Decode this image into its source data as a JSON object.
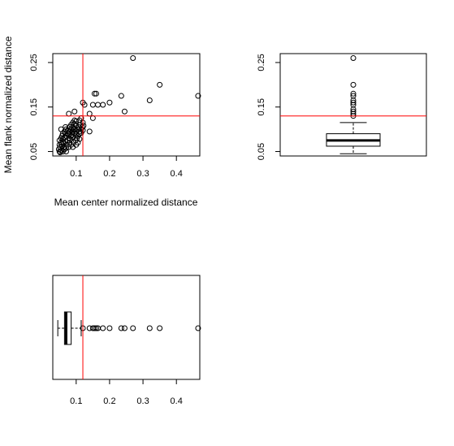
{
  "colors": {
    "axis": "#000000",
    "points": "#000000",
    "threshold_line": "#ff0000",
    "box_fill": "#ffffff"
  },
  "chart_data": [
    {
      "panel": "scatter",
      "type": "scatter",
      "xlabel": "Mean center normalized distance",
      "ylabel": "Mean flank normalized distance",
      "xlim": [
        0.03,
        0.47
      ],
      "ylim": [
        0.04,
        0.27
      ],
      "x_ticks": [
        0.1,
        0.2,
        0.3,
        0.4
      ],
      "x_tick_labels": [
        "0.1",
        "0.2",
        "0.3",
        "0.4"
      ],
      "y_ticks": [
        0.05,
        0.15,
        0.25
      ],
      "y_tick_labels": [
        "0.05",
        "0.15",
        "0.25"
      ],
      "reference_lines": {
        "x": 0.12,
        "y": 0.13
      },
      "grid": false,
      "points": [
        [
          0.05,
          0.05
        ],
        [
          0.055,
          0.052
        ],
        [
          0.06,
          0.05
        ],
        [
          0.052,
          0.06
        ],
        [
          0.058,
          0.062
        ],
        [
          0.065,
          0.055
        ],
        [
          0.07,
          0.058
        ],
        [
          0.062,
          0.068
        ],
        [
          0.055,
          0.07
        ],
        [
          0.068,
          0.072
        ],
        [
          0.072,
          0.065
        ],
        [
          0.075,
          0.075
        ],
        [
          0.06,
          0.078
        ],
        [
          0.065,
          0.082
        ],
        [
          0.07,
          0.085
        ],
        [
          0.078,
          0.08
        ],
        [
          0.08,
          0.07
        ],
        [
          0.082,
          0.078
        ],
        [
          0.085,
          0.085
        ],
        [
          0.075,
          0.09
        ],
        [
          0.088,
          0.088
        ],
        [
          0.09,
          0.082
        ],
        [
          0.095,
          0.09
        ],
        [
          0.09,
          0.095
        ],
        [
          0.1,
          0.088
        ],
        [
          0.1,
          0.095
        ],
        [
          0.105,
          0.1
        ],
        [
          0.095,
          0.1
        ],
        [
          0.11,
          0.095
        ],
        [
          0.108,
          0.105
        ],
        [
          0.112,
          0.11
        ],
        [
          0.115,
          0.1
        ],
        [
          0.1,
          0.108
        ],
        [
          0.095,
          0.112
        ],
        [
          0.09,
          0.105
        ],
        [
          0.085,
          0.1
        ],
        [
          0.08,
          0.095
        ],
        [
          0.075,
          0.098
        ],
        [
          0.07,
          0.1
        ],
        [
          0.065,
          0.095
        ],
        [
          0.06,
          0.09
        ],
        [
          0.058,
          0.085
        ],
        [
          0.055,
          0.08
        ],
        [
          0.05,
          0.075
        ],
        [
          0.05,
          0.065
        ],
        [
          0.048,
          0.055
        ],
        [
          0.052,
          0.048
        ],
        [
          0.07,
          0.05
        ],
        [
          0.078,
          0.06
        ],
        [
          0.085,
          0.065
        ],
        [
          0.092,
          0.07
        ],
        [
          0.098,
          0.075
        ],
        [
          0.102,
          0.08
        ],
        [
          0.105,
          0.085
        ],
        [
          0.11,
          0.09
        ],
        [
          0.115,
          0.092
        ],
        [
          0.12,
          0.098
        ],
        [
          0.118,
          0.105
        ],
        [
          0.122,
          0.108
        ],
        [
          0.12,
          0.115
        ],
        [
          0.11,
          0.12
        ],
        [
          0.1,
          0.118
        ],
        [
          0.095,
          0.12
        ],
        [
          0.09,
          0.115
        ],
        [
          0.085,
          0.11
        ],
        [
          0.08,
          0.105
        ],
        [
          0.088,
          0.092
        ],
        [
          0.078,
          0.088
        ],
        [
          0.068,
          0.09
        ],
        [
          0.06,
          0.072
        ],
        [
          0.056,
          0.066
        ],
        [
          0.063,
          0.06
        ],
        [
          0.09,
          0.06
        ],
        [
          0.1,
          0.065
        ],
        [
          0.105,
          0.07
        ],
        [
          0.11,
          0.078
        ],
        [
          0.068,
          0.105
        ],
        [
          0.055,
          0.1
        ],
        [
          0.078,
          0.135
        ],
        [
          0.095,
          0.14
        ],
        [
          0.115,
          0.125
        ],
        [
          0.12,
          0.16
        ],
        [
          0.125,
          0.155
        ],
        [
          0.14,
          0.135
        ],
        [
          0.14,
          0.095
        ],
        [
          0.15,
          0.125
        ],
        [
          0.15,
          0.155
        ],
        [
          0.155,
          0.18
        ],
        [
          0.16,
          0.18
        ],
        [
          0.165,
          0.155
        ],
        [
          0.18,
          0.155
        ],
        [
          0.2,
          0.16
        ],
        [
          0.235,
          0.175
        ],
        [
          0.245,
          0.14
        ],
        [
          0.27,
          0.26
        ],
        [
          0.32,
          0.165
        ],
        [
          0.35,
          0.2
        ],
        [
          0.465,
          0.175
        ]
      ]
    },
    {
      "panel": "vertical-boxplot",
      "type": "boxplot",
      "variable": "mean flank normalized distance",
      "ylim": [
        0.04,
        0.27
      ],
      "y_ticks": [
        0.05,
        0.15,
        0.25
      ],
      "y_tick_labels": [
        "0.05",
        "0.15",
        "0.25"
      ],
      "reference_line": 0.13,
      "whisker_low": 0.045,
      "q1": 0.062,
      "median": 0.075,
      "q3": 0.09,
      "whisker_high": 0.115,
      "outliers": [
        0.13,
        0.135,
        0.14,
        0.145,
        0.155,
        0.16,
        0.165,
        0.175,
        0.18,
        0.2,
        0.26
      ]
    },
    {
      "panel": "horizontal-boxplot",
      "type": "boxplot",
      "variable": "mean center normalized distance",
      "xlim": [
        0.03,
        0.47
      ],
      "x_ticks": [
        0.1,
        0.2,
        0.3,
        0.4
      ],
      "x_tick_labels": [
        "0.1",
        "0.2",
        "0.3",
        "0.4"
      ],
      "reference_line": 0.12,
      "whisker_low": 0.045,
      "q1": 0.065,
      "median": 0.07,
      "q3": 0.085,
      "whisker_high": 0.115,
      "outliers": [
        0.12,
        0.14,
        0.15,
        0.155,
        0.16,
        0.165,
        0.18,
        0.2,
        0.235,
        0.245,
        0.27,
        0.32,
        0.35,
        0.465
      ]
    }
  ]
}
